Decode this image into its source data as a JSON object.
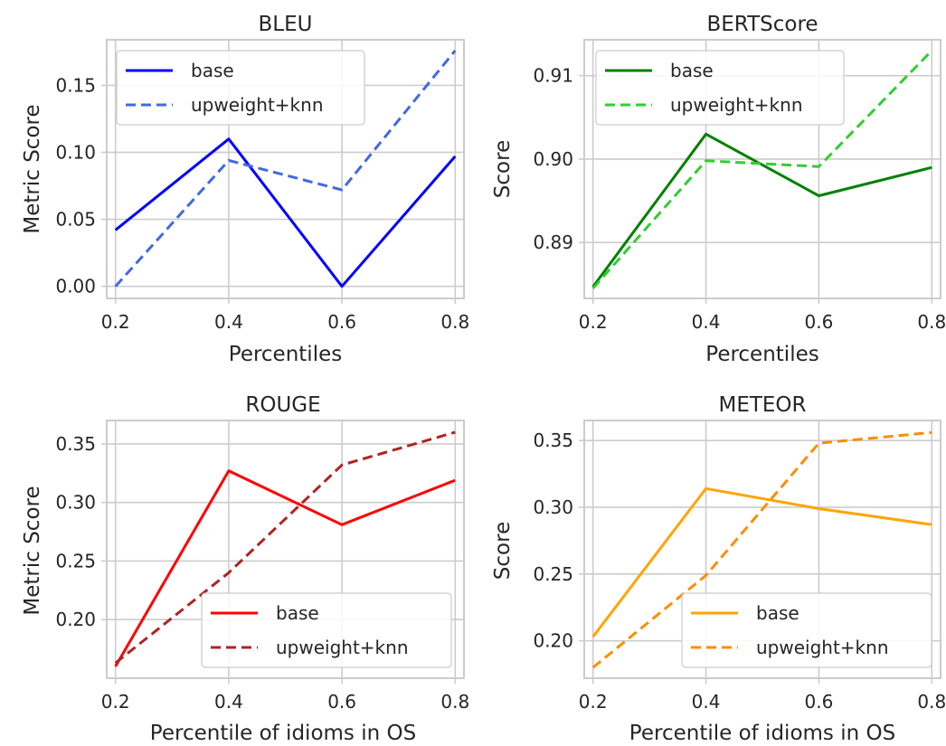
{
  "chart_data": [
    {
      "type": "line",
      "title": "BLEU",
      "xlabel": "Percentiles",
      "ylabel": "Metric Score",
      "x": [
        0.2,
        0.4,
        0.6,
        0.8
      ],
      "xticks": [
        "0.2",
        "0.4",
        "0.6",
        "0.8"
      ],
      "yticks": [
        "0.00",
        "0.05",
        "0.10",
        "0.15"
      ],
      "ylim": [
        -0.009,
        0.184
      ],
      "grid": true,
      "legend_position": "upper left",
      "series": [
        {
          "name": "base",
          "color": "#0000ff",
          "dashed": false,
          "values": [
            0.042,
            0.11,
            0.0,
            0.097
          ]
        },
        {
          "name": "upweight+knn",
          "color": "#4169e1",
          "dashed": true,
          "values": [
            0.0,
            0.094,
            0.072,
            0.176
          ]
        }
      ]
    },
    {
      "type": "line",
      "title": "BERTScore",
      "xlabel": "Percentiles",
      "ylabel": "Score",
      "x": [
        0.2,
        0.4,
        0.6,
        0.8
      ],
      "xticks": [
        "0.2",
        "0.4",
        "0.6",
        "0.8"
      ],
      "yticks": [
        "0.89",
        "0.90",
        "0.91"
      ],
      "ylim": [
        0.8833,
        0.9143
      ],
      "grid": true,
      "legend_position": "upper left",
      "series": [
        {
          "name": "base",
          "color": "#008000",
          "dashed": false,
          "values": [
            0.8847,
            0.903,
            0.8956,
            0.899
          ]
        },
        {
          "name": "upweight+knn",
          "color": "#32cd32",
          "dashed": true,
          "values": [
            0.8845,
            0.8998,
            0.8991,
            0.913
          ]
        }
      ]
    },
    {
      "type": "line",
      "title": "ROUGE",
      "xlabel": "Percentile of idioms in OS",
      "ylabel": "Metric Score",
      "x": [
        0.2,
        0.4,
        0.6,
        0.8
      ],
      "xticks": [
        "0.2",
        "0.4",
        "0.6",
        "0.8"
      ],
      "yticks": [
        "0.20",
        "0.25",
        "0.30",
        "0.35"
      ],
      "ylim": [
        0.15,
        0.37
      ],
      "grid": true,
      "legend_position": "lower right",
      "series": [
        {
          "name": "base",
          "color": "#ff0000",
          "dashed": false,
          "values": [
            0.16,
            0.327,
            0.281,
            0.319
          ]
        },
        {
          "name": "upweight+knn",
          "color": "#b22222",
          "dashed": true,
          "values": [
            0.163,
            0.24,
            0.332,
            0.36
          ]
        }
      ]
    },
    {
      "type": "line",
      "title": "METEOR",
      "xlabel": "Percentile of idioms in OS",
      "ylabel": "Score",
      "x": [
        0.2,
        0.4,
        0.6,
        0.8
      ],
      "xticks": [
        "0.2",
        "0.4",
        "0.6",
        "0.8"
      ],
      "yticks": [
        "0.20",
        "0.25",
        "0.30",
        "0.35"
      ],
      "ylim": [
        0.172,
        0.365
      ],
      "grid": true,
      "legend_position": "lower right",
      "series": [
        {
          "name": "base",
          "color": "#ffa500",
          "dashed": false,
          "values": [
            0.203,
            0.314,
            0.299,
            0.287
          ]
        },
        {
          "name": "upweight+knn",
          "color": "#ff8c00",
          "dashed": true,
          "values": [
            0.18,
            0.249,
            0.348,
            0.356
          ]
        }
      ]
    }
  ]
}
